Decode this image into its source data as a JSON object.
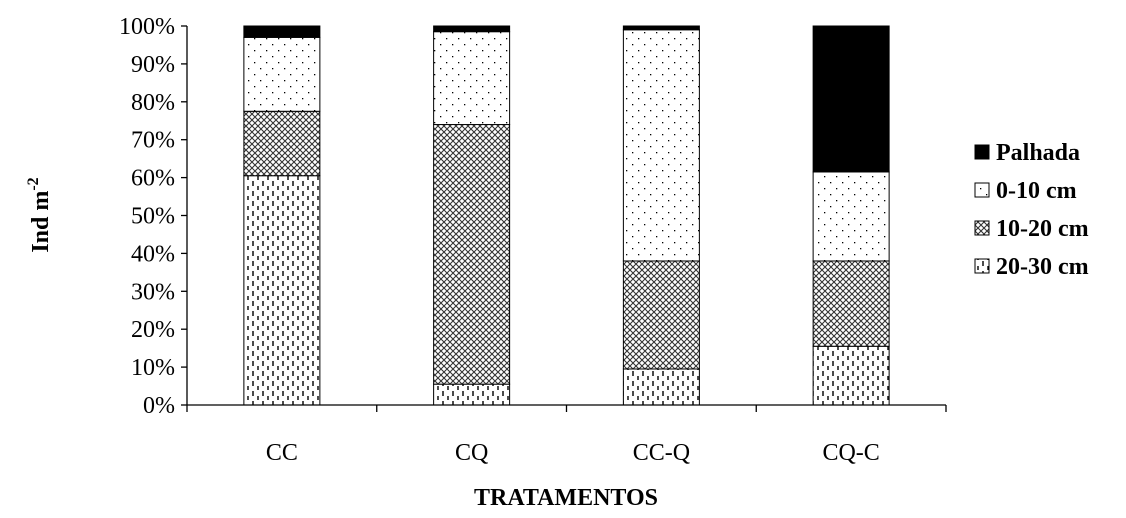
{
  "chart_data": {
    "type": "bar",
    "stacked": true,
    "percent": true,
    "categories": [
      "CC",
      "CQ",
      "CC-Q",
      "CQ-C"
    ],
    "series": [
      {
        "name": "20-30 cm",
        "pattern": "dashes",
        "values": [
          60.5,
          5.5,
          9.5,
          15.5
        ]
      },
      {
        "name": "10-20 cm",
        "pattern": "crosshatch",
        "values": [
          17.0,
          68.5,
          28.5,
          22.5
        ]
      },
      {
        "name": "0-10 cm",
        "pattern": "dots",
        "values": [
          19.5,
          24.5,
          61.0,
          23.5
        ]
      },
      {
        "name": "Palhada",
        "pattern": "solid",
        "color": "#000000",
        "values": [
          3.0,
          1.5,
          1.0,
          38.5
        ]
      }
    ],
    "yticks": [
      "0%",
      "10%",
      "20%",
      "30%",
      "40%",
      "50%",
      "60%",
      "70%",
      "80%",
      "90%",
      "100%"
    ],
    "ylim": [
      0,
      100
    ],
    "ylabel": "Ind m",
    "ylabel_sup": "-2",
    "xlabel": "TRATAMENTOS",
    "legend_position": "right",
    "grid": false
  }
}
